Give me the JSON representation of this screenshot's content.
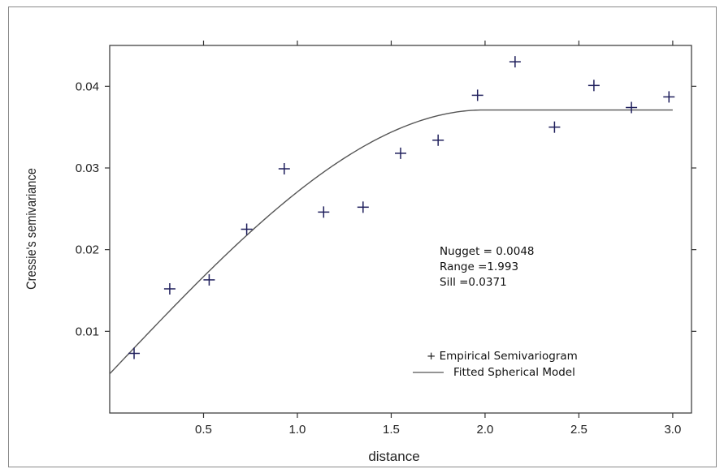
{
  "chart_data": {
    "type": "scatter",
    "title": "",
    "xlabel": "distance",
    "ylabel": "Cressie's semivariance",
    "xlim": [
      0.0,
      3.1
    ],
    "ylim": [
      0.0,
      0.045
    ],
    "x_ticks": [
      0.5,
      1.0,
      1.5,
      2.0,
      2.5,
      3.0
    ],
    "x_tick_labels": [
      "0.5",
      "1.0",
      "1.5",
      "2.0",
      "2.5",
      "3.0"
    ],
    "y_ticks": [
      0.01,
      0.02,
      0.03,
      0.04
    ],
    "y_tick_labels": [
      "0.01",
      "0.02",
      "0.03",
      "0.04"
    ],
    "grid": false,
    "series": [
      {
        "name": "Empirical Semivariogram",
        "kind": "points",
        "marker": "+",
        "color": "#1f1f5c",
        "x": [
          0.13,
          0.32,
          0.53,
          0.73,
          0.93,
          1.14,
          1.35,
          1.55,
          1.75,
          1.96,
          2.16,
          2.37,
          2.58,
          2.78,
          2.98
        ],
        "y": [
          0.0073,
          0.0152,
          0.0163,
          0.0225,
          0.0299,
          0.0246,
          0.0252,
          0.0318,
          0.0334,
          0.0389,
          0.043,
          0.035,
          0.0401,
          0.0374,
          0.0387
        ]
      },
      {
        "name": "Fitted Spherical Model",
        "kind": "line",
        "model": "spherical",
        "color": "#555555",
        "nugget": 0.0048,
        "range": 1.993,
        "sill": 0.0371,
        "x_max": 3.0
      }
    ],
    "annotations": {
      "nugget_text": "Nugget = 0.0048",
      "range_text": "Range =1.993",
      "sill_text": "Sill =0.0371"
    },
    "legend": {
      "position": "bottom-right",
      "points_label": "+ Empirical Semivariogram",
      "line_label": "Fitted Spherical Model"
    }
  }
}
